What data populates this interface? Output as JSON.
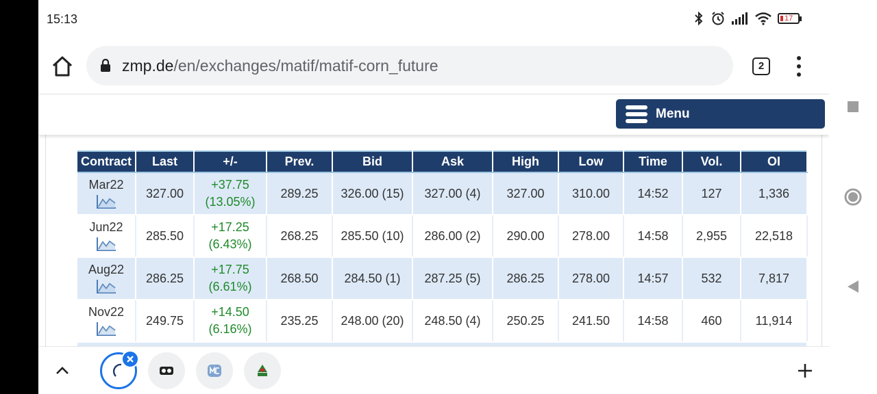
{
  "status_bar": {
    "time": "15:13",
    "battery": "17"
  },
  "browser": {
    "url_host": "zmp.de",
    "url_path": "/en/exchanges/matif/matif-corn_future",
    "tab_count": "2"
  },
  "header": {
    "menu_label": "Menu"
  },
  "table": {
    "columns": [
      "Contract",
      "Last",
      "+/-",
      "Prev.",
      "Bid",
      "Ask",
      "High",
      "Low",
      "Time",
      "Vol.",
      "OI"
    ],
    "rows": [
      {
        "contract": "Mar22",
        "last": "327.00",
        "change": "+37.75",
        "change_pct": "(13.05%)",
        "prev": "289.25",
        "bid": "326.00 (15)",
        "ask": "327.00 (4)",
        "high": "327.00",
        "low": "310.00",
        "time": "14:52",
        "vol": "127",
        "oi": "1,336"
      },
      {
        "contract": "Jun22",
        "last": "285.50",
        "change": "+17.25",
        "change_pct": "(6.43%)",
        "prev": "268.25",
        "bid": "285.50 (10)",
        "ask": "286.00 (2)",
        "high": "290.00",
        "low": "278.00",
        "time": "14:58",
        "vol": "2,955",
        "oi": "22,518"
      },
      {
        "contract": "Aug22",
        "last": "286.25",
        "change": "+17.75",
        "change_pct": "(6.61%)",
        "prev": "268.50",
        "bid": "284.50 (1)",
        "ask": "287.25 (5)",
        "high": "286.25",
        "low": "278.00",
        "time": "14:57",
        "vol": "532",
        "oi": "7,817"
      },
      {
        "contract": "Nov22",
        "last": "249.75",
        "change": "+14.50",
        "change_pct": "(6.16%)",
        "prev": "235.25",
        "bid": "248.00 (20)",
        "ask": "248.50 (4)",
        "high": "250.25",
        "low": "241.50",
        "time": "14:58",
        "vol": "460",
        "oi": "11,914"
      }
    ]
  },
  "colors": {
    "header_bg": "#1f3d6b",
    "row_alt": "#dde9f7",
    "positive": "#1f8a2a",
    "accent": "#1a73e8"
  }
}
